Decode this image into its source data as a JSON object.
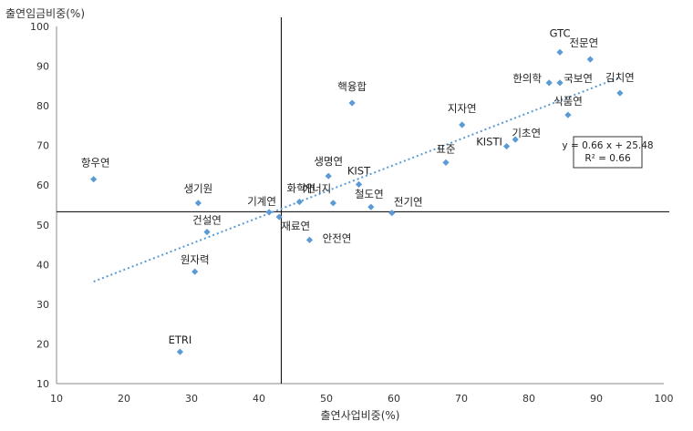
{
  "chart_data": {
    "type": "scatter",
    "xlabel": "출연사업비중(%)",
    "ylabel": "출연임금비중(%)",
    "xlim": [
      10,
      100
    ],
    "ylim": [
      10,
      100
    ],
    "xticks": [
      10,
      20,
      30,
      40,
      50,
      60,
      70,
      80,
      90,
      100
    ],
    "yticks": [
      10,
      20,
      30,
      40,
      50,
      60,
      70,
      80,
      90,
      100
    ],
    "grid": false,
    "marker_color": "#5b9bd5",
    "trend_color": "#5b9bd5",
    "reference_lines": {
      "x": 43.3,
      "y": 53.3
    },
    "points": [
      {
        "label": "항우연",
        "x": 15.5,
        "y": 61.5
      },
      {
        "label": "생기원",
        "x": 31.0,
        "y": 55.5
      },
      {
        "label": "건설연",
        "x": 32.3,
        "y": 48.2
      },
      {
        "label": "원자력",
        "x": 30.5,
        "y": 38.2
      },
      {
        "label": "ETRI",
        "x": 28.3,
        "y": 18.0
      },
      {
        "label": "기계연",
        "x": 41.5,
        "y": 53.2
      },
      {
        "label": "재료연",
        "x": 43.0,
        "y": 52.0
      },
      {
        "label": "화학연",
        "x": 46.0,
        "y": 55.8
      },
      {
        "label": "안전연",
        "x": 47.5,
        "y": 46.2
      },
      {
        "label": "생명연",
        "x": 50.3,
        "y": 62.3
      },
      {
        "label": "에너지",
        "x": 51.0,
        "y": 55.5
      },
      {
        "label": "KIST",
        "x": 54.8,
        "y": 60.2
      },
      {
        "label": "철도연",
        "x": 56.6,
        "y": 54.5
      },
      {
        "label": "전기연",
        "x": 59.7,
        "y": 53.0
      },
      {
        "label": "핵융합",
        "x": 53.8,
        "y": 80.7
      },
      {
        "label": "표준",
        "x": 67.7,
        "y": 65.7
      },
      {
        "label": "지자연",
        "x": 70.1,
        "y": 75.2
      },
      {
        "label": "KISTI",
        "x": 76.7,
        "y": 69.8
      },
      {
        "label": "기초연",
        "x": 78.0,
        "y": 71.5
      },
      {
        "label": "한의학",
        "x": 83.0,
        "y": 85.8
      },
      {
        "label": "국보연",
        "x": 84.6,
        "y": 85.8
      },
      {
        "label": "GTC",
        "x": 84.6,
        "y": 93.5
      },
      {
        "label": "식품연",
        "x": 85.8,
        "y": 77.7
      },
      {
        "label": "전문연",
        "x": 89.1,
        "y": 91.7
      },
      {
        "label": "김치연",
        "x": 93.5,
        "y": 83.2
      }
    ],
    "trendline": {
      "slope": 0.66,
      "intercept": 25.48,
      "x_range": [
        15.5,
        93.5
      ],
      "equation": "y = 0.66 x + 25.48",
      "r_squared": "R² = 0.66"
    }
  }
}
